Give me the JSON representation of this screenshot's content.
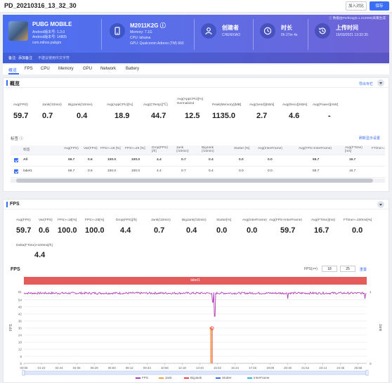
{
  "header": {
    "title": "PD_20210316_13_32_30",
    "import_label": "加入对比",
    "save_label": "保存"
  },
  "banner": {
    "note": "ⓘ 数据由PerfDog(5.1.210300)采集生成",
    "app_name": "PUBG MOBILE",
    "app_version": "Android版本号: 1.3.0",
    "app_build": "Android版本号: 14805",
    "package": "com.mihoo.pubgm",
    "footer_remark_label": "备注:",
    "footer_remark": "添加备注",
    "footer_link": "不建议使用中文字符",
    "device_model": "M2011K2G ⓘ",
    "device_memory": "Memory: 7.1G",
    "device_cpu": "CPU: lahaina",
    "device_gpu": "GPU: Qualcomm Adreno (TM) 660",
    "creator_label": "创建者",
    "creator_value": "CHENXIAO",
    "duration_label": "时长",
    "duration_value": "0h 27m 4s",
    "upload_label": "上传时间",
    "upload_value": "16/03/2021 13:32:35"
  },
  "tabs": [
    "概览",
    "FPS",
    "CPU",
    "Memory",
    "GPU",
    "Network",
    "Battery"
  ],
  "overview": {
    "title": "概览",
    "export_label": "导出专栏",
    "metrics": [
      {
        "label": "Avg(FPS)",
        "value": "59.7"
      },
      {
        "label": "Jank(/10min)",
        "value": "0.7"
      },
      {
        "label": "BigJank(/10min)",
        "value": "0.4"
      },
      {
        "label": "Avg(AppCPU)[%]",
        "value": "18.9"
      },
      {
        "label": "Avg(CTemp)[℃]",
        "value": "44.7"
      },
      {
        "label": "Avg(AppCPU)[%] Normalized",
        "value": "12.5"
      },
      {
        "label": "Peak(Memory)[MB]",
        "value": "1135.0"
      },
      {
        "label": "Avg(Send)[KB/s]",
        "value": "2.7"
      },
      {
        "label": "Avg(Recv)[KB/s]",
        "value": "4.6"
      },
      {
        "label": "Avg(Power)[mW]",
        "value": "-"
      }
    ],
    "label_section": "标签 ⓘ",
    "label_section_link": "刷新显示设置",
    "table": {
      "columns": [
        "标签",
        "Avg(FPS)",
        "Var(FPS)",
        "FPS>=18 [%]",
        "FPS>=25 [%]",
        "Drop(FPS) [/h]",
        "Jank (/10min)",
        "BigJank (/10min)",
        "Stutter [%]",
        "Avg(InterFrame)",
        "Avg(FPS+InterFrame)",
        "Avg(FTime) [ms]",
        "FTime>="
      ],
      "rows": [
        [
          "All",
          "59.7",
          "0.6",
          "100.0",
          "100.0",
          "4.4",
          "0.7",
          "0.4",
          "0.0",
          "0.0",
          "59.7",
          "16.7",
          ""
        ],
        [
          "label1",
          "59.7",
          "0.6",
          "100.0",
          "100.0",
          "4.4",
          "0.7",
          "0.4",
          "0.0",
          "0.0",
          "59.7",
          "16.7",
          ""
        ]
      ]
    }
  },
  "fps": {
    "title": "FPS",
    "metrics": [
      {
        "label": "Avg(FPS)",
        "value": "59.7"
      },
      {
        "label": "Var(FPS)",
        "value": "0.6"
      },
      {
        "label": "FPS>=18[%]",
        "value": "100.0"
      },
      {
        "label": "FPS>=25[%]",
        "value": "100.0"
      },
      {
        "label": "Drop(FPS)[/h]",
        "value": "4.4"
      },
      {
        "label": "Jank(/10min)",
        "value": "0.7"
      },
      {
        "label": "BigJank(/10min)",
        "value": "0.4"
      },
      {
        "label": "Stutter[%]",
        "value": "0.0"
      },
      {
        "label": "Avg(InterFrame)",
        "value": "0.0"
      },
      {
        "label": "Avg(FPS+InterFrame)",
        "value": "59.7"
      },
      {
        "label": "Avg(FTime)[ms]",
        "value": "16.7"
      },
      {
        "label": "FTime>=100ms[%]",
        "value": "0.0"
      },
      {
        "label": "Delta(FTime)>100ms[/h]",
        "value": "4.4"
      }
    ],
    "chart_title": "FPS",
    "fps_threshold_label": "FPS(>=)",
    "fps_threshold_1": "18",
    "fps_threshold_2": "25",
    "fps_threshold_link": "重置",
    "label_band": "label1"
  },
  "chart_data": {
    "type": "line",
    "title": "FPS",
    "ylabel": "FPS",
    "y2label": "Jank",
    "ylim": [
      0,
      61
    ],
    "y_ticks": [
      0,
      6,
      12,
      18,
      24,
      30,
      36,
      42,
      48,
      54,
      61
    ],
    "x_ticks": [
      "00:00",
      "01:22",
      "02:44",
      "04:06",
      "05:28",
      "06:50",
      "08:12",
      "09:34",
      "10:56",
      "12:18",
      "13:40",
      "15:02",
      "16:24",
      "17:46",
      "19:08",
      "20:30",
      "21:52",
      "23:14",
      "24:36",
      "25:58"
    ],
    "y2_ticks": [
      "0",
      "1"
    ],
    "series": [
      {
        "name": "FPS",
        "color": "#b23db8",
        "base_value": 59.7,
        "dips": [
          {
            "time": "14:50",
            "value": 40
          },
          {
            "time": "14:40",
            "value": 52
          },
          {
            "time": "20:30",
            "value": 55
          },
          {
            "time": "26:30",
            "value": 55
          }
        ]
      },
      {
        "name": "Jank",
        "color": "#f2a33a",
        "events": [
          {
            "time": "14:34",
            "value": 1
          }
        ]
      },
      {
        "name": "BigJank",
        "color": "#e84848",
        "events": [
          {
            "time": "14:34",
            "value": 1
          }
        ]
      },
      {
        "name": "Stutter",
        "color": "#3b6ef5"
      },
      {
        "name": "InterFrame",
        "color": "#34b3e4"
      }
    ],
    "legend_position": "bottom"
  }
}
